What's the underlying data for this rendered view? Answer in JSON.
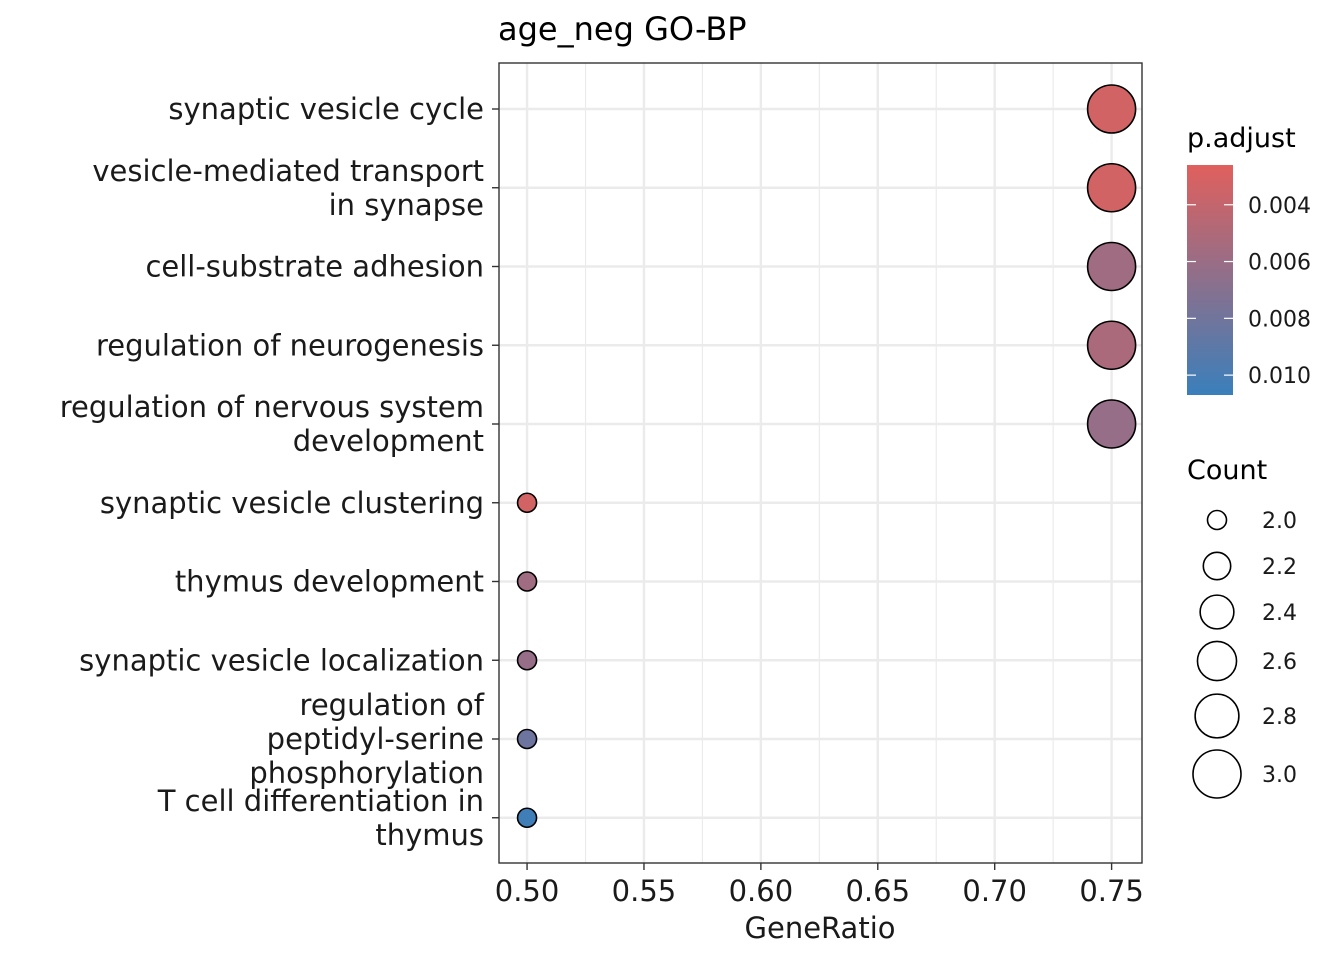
{
  "chart_data": {
    "type": "scatter",
    "title": "age_neg GO-BP",
    "xlabel": "GeneRatio",
    "ylabel": "",
    "xlim": [
      0.488,
      0.763
    ],
    "x_ticks": [
      0.5,
      0.55,
      0.6,
      0.65,
      0.7,
      0.75
    ],
    "x_tick_labels": [
      "0.50",
      "0.55",
      "0.60",
      "0.65",
      "0.70",
      "0.75"
    ],
    "grid": true,
    "categories": [
      "synaptic vesicle cycle",
      "vesicle-mediated transport\nin synapse",
      "cell-substrate adhesion",
      "regulation of neurogenesis",
      "regulation of nervous system\ndevelopment",
      "synaptic vesicle clustering",
      "thymus development",
      "synaptic vesicle localization",
      "regulation of\npeptidyl-serine\nphosphorylation",
      "T cell differentiation in\nthymus"
    ],
    "points": [
      {
        "term": "synaptic vesicle cycle",
        "gene_ratio": 0.75,
        "count": 3,
        "p_adjust": 0.0033
      },
      {
        "term": "vesicle-mediated transport in synapse",
        "gene_ratio": 0.75,
        "count": 3,
        "p_adjust": 0.0033
      },
      {
        "term": "cell-substrate adhesion",
        "gene_ratio": 0.75,
        "count": 3,
        "p_adjust": 0.0057
      },
      {
        "term": "regulation of neurogenesis",
        "gene_ratio": 0.75,
        "count": 3,
        "p_adjust": 0.0052
      },
      {
        "term": "regulation of nervous system development",
        "gene_ratio": 0.75,
        "count": 3,
        "p_adjust": 0.0062
      },
      {
        "term": "synaptic vesicle clustering",
        "gene_ratio": 0.5,
        "count": 2,
        "p_adjust": 0.0033
      },
      {
        "term": "thymus development",
        "gene_ratio": 0.5,
        "count": 2,
        "p_adjust": 0.0057
      },
      {
        "term": "synaptic vesicle localization",
        "gene_ratio": 0.5,
        "count": 2,
        "p_adjust": 0.0062
      },
      {
        "term": "regulation of peptidyl-serine phosphorylation",
        "gene_ratio": 0.5,
        "count": 2,
        "p_adjust": 0.0082
      },
      {
        "term": "T cell differentiation in thymus",
        "gene_ratio": 0.5,
        "count": 2,
        "p_adjust": 0.0104
      }
    ],
    "color_legend": {
      "title": "p.adjust",
      "low_color": "#e0605d",
      "high_color": "#3a7fbb",
      "range": [
        0.0026,
        0.0107
      ],
      "ticks": [
        0.004,
        0.006,
        0.008,
        0.01
      ],
      "tick_labels": [
        "0.004",
        "0.006",
        "0.008",
        "0.010"
      ]
    },
    "size_legend": {
      "title": "Count",
      "values": [
        2.0,
        2.2,
        2.4,
        2.6,
        2.8,
        3.0
      ],
      "labels": [
        "2.0",
        "2.2",
        "2.4",
        "2.6",
        "2.8",
        "3.0"
      ]
    }
  }
}
